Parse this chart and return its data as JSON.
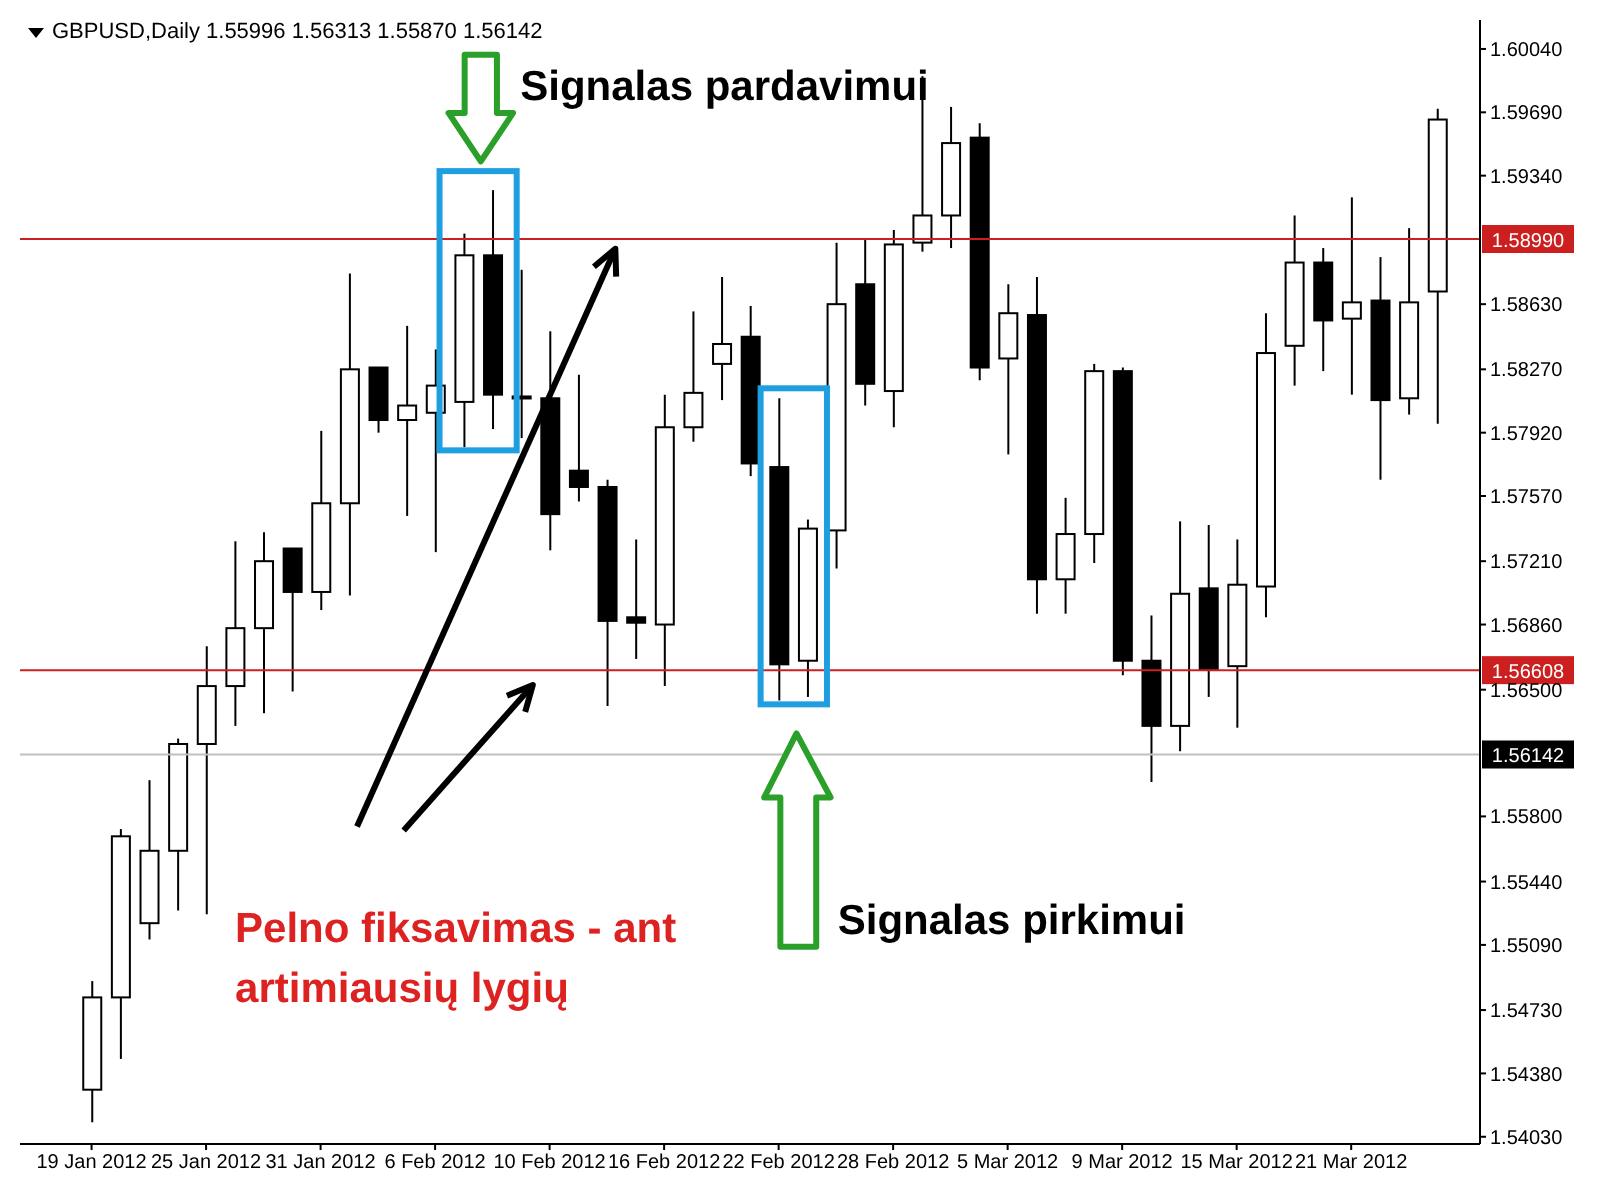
{
  "chart_data": {
    "type": "candlestick",
    "title": "GBPUSD,Daily 1.55996 1.56313 1.55870 1.56142",
    "categories": [
      "19 Jan 2012",
      null,
      null,
      null,
      "25 Jan 2012",
      null,
      null,
      null,
      "31 Jan 2012",
      null,
      null,
      null,
      "6 Feb 2012",
      null,
      null,
      null,
      "10 Feb 2012",
      null,
      null,
      null,
      "16 Feb 2012",
      null,
      null,
      null,
      "22 Feb 2012",
      null,
      null,
      null,
      "28 Feb 2012",
      null,
      null,
      null,
      "5 Mar 2012",
      null,
      null,
      null,
      "9 Mar 2012",
      null,
      null,
      null,
      "15 Mar 2012",
      null,
      null,
      null,
      "21 Mar 2012",
      null,
      null,
      null
    ],
    "ohlc": [
      [
        1.5429,
        1.5489,
        1.5411,
        1.548
      ],
      [
        1.548,
        1.5573,
        1.5446,
        1.5569
      ],
      [
        1.5521,
        1.56,
        1.5512,
        1.5561
      ],
      [
        1.5561,
        1.5623,
        1.5528,
        1.562
      ],
      [
        1.562,
        1.5674,
        1.5526,
        1.5652
      ],
      [
        1.5652,
        1.5732,
        1.563,
        1.5684
      ],
      [
        1.5684,
        1.5737,
        1.5637,
        1.5721
      ],
      [
        1.5728,
        1.5728,
        1.5649,
        1.5704
      ],
      [
        1.5704,
        1.5793,
        1.5694,
        1.5753
      ],
      [
        1.5753,
        1.588,
        1.5702,
        1.5827
      ],
      [
        1.5828,
        1.5828,
        1.5792,
        1.5799
      ],
      [
        1.5799,
        1.5851,
        1.5746,
        1.5807
      ],
      [
        1.5803,
        1.5838,
        1.5726,
        1.5818
      ],
      [
        1.5809,
        1.5902,
        1.5784,
        1.589
      ],
      [
        1.589,
        1.5926,
        1.5794,
        1.5813
      ],
      [
        1.5812,
        1.5882,
        1.5789,
        1.5812
      ],
      [
        1.5811,
        1.5848,
        1.5727,
        1.5747
      ],
      [
        1.5771,
        1.5824,
        1.5754,
        1.5762
      ],
      [
        1.5762,
        1.5766,
        1.5641,
        1.5688
      ],
      [
        1.569,
        1.5733,
        1.5667,
        1.5687
      ],
      [
        1.5686,
        1.5813,
        1.5652,
        1.5795
      ],
      [
        1.5795,
        1.5859,
        1.5787,
        1.5814
      ],
      [
        1.583,
        1.5878,
        1.581,
        1.5841
      ],
      [
        1.5845,
        1.5862,
        1.5768,
        1.5775
      ],
      [
        1.5773,
        1.5811,
        1.5644,
        1.5664
      ],
      [
        1.5666,
        1.5744,
        1.5646,
        1.5739
      ],
      [
        1.5738,
        1.5897,
        1.5717,
        1.5863
      ],
      [
        1.5874,
        1.5899,
        1.5807,
        1.5819
      ],
      [
        1.5815,
        1.5904,
        1.5795,
        1.5896
      ],
      [
        1.5897,
        1.5989,
        1.5892,
        1.5912
      ],
      [
        1.5912,
        1.5972,
        1.5894,
        1.5952
      ],
      [
        1.5955,
        1.5963,
        1.5821,
        1.5828
      ],
      [
        1.5833,
        1.5874,
        1.578,
        1.5858
      ],
      [
        1.5857,
        1.5878,
        1.5692,
        1.5711
      ],
      [
        1.5711,
        1.5756,
        1.5692,
        1.5736
      ],
      [
        1.5736,
        1.583,
        1.572,
        1.5826
      ],
      [
        1.5826,
        1.5828,
        1.5658,
        1.5666
      ],
      [
        1.5666,
        1.5691,
        1.5599,
        1.563
      ],
      [
        1.563,
        1.5743,
        1.5616,
        1.5703
      ],
      [
        1.5706,
        1.5741,
        1.5646,
        1.5661
      ],
      [
        1.5663,
        1.5733,
        1.5629,
        1.5708
      ],
      [
        1.5707,
        1.5858,
        1.569,
        1.5836
      ],
      [
        1.584,
        1.5912,
        1.5818,
        1.5886
      ],
      [
        1.5886,
        1.5894,
        1.5826,
        1.5854
      ],
      [
        1.5855,
        1.5922,
        1.5813,
        1.5864
      ],
      [
        1.5865,
        1.5889,
        1.5766,
        1.581
      ],
      [
        1.5811,
        1.5905,
        1.5802,
        1.5864
      ],
      [
        1.587,
        1.5971,
        1.5797,
        1.5965
      ]
    ],
    "ylim": [
      1.5399,
      1.602
    ],
    "yticks": [
      {
        "value": 1.6004,
        "label": "1.60040"
      },
      {
        "value": 1.5969,
        "label": "1.59690"
      },
      {
        "value": 1.5934,
        "label": "1.59340"
      },
      {
        "value": 1.5863,
        "label": "1.58630"
      },
      {
        "value": 1.5827,
        "label": "1.58270"
      },
      {
        "value": 1.5792,
        "label": "1.57920"
      },
      {
        "value": 1.5757,
        "label": "1.57570"
      },
      {
        "value": 1.5721,
        "label": "1.57210"
      },
      {
        "value": 1.5686,
        "label": "1.56860"
      },
      {
        "value": 1.565,
        "label": "1.56500"
      },
      {
        "value": 1.558,
        "label": "1.55800"
      },
      {
        "value": 1.5544,
        "label": "1.55440"
      },
      {
        "value": 1.5509,
        "label": "1.55090"
      },
      {
        "value": 1.5473,
        "label": "1.54730"
      },
      {
        "value": 1.5438,
        "label": "1.54380"
      },
      {
        "value": 1.5403,
        "label": "1.54030"
      }
    ],
    "ref_lines": [
      {
        "axis": "y",
        "value": 1.5899,
        "label": "1.58990",
        "color": "#cc2020"
      },
      {
        "axis": "y",
        "value": 1.56608,
        "label": "1.56608",
        "color": "#cc2020"
      },
      {
        "axis": "y",
        "value": 1.56142,
        "label": "1.56142",
        "color": "#c0c0c0"
      }
    ],
    "annotations": [
      "Signalas pardavimui",
      "Signalas pirkimui",
      "Pelno fiksavimas - ant artimiausių lygių"
    ]
  }
}
